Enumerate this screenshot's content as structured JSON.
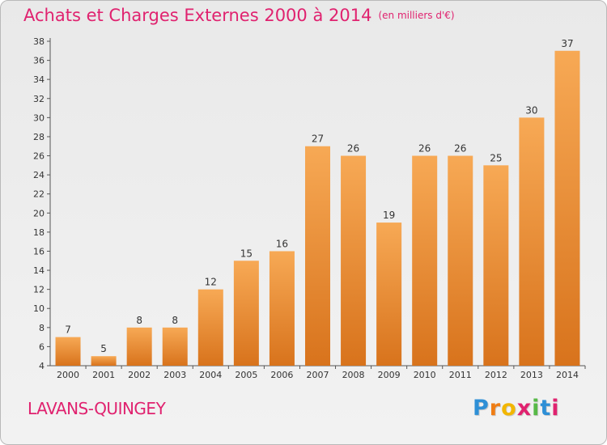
{
  "title": "Achats et Charges Externes 2000 à 2014",
  "subtitle": "(en milliers d'€)",
  "commune": "LAVANS-QUINGEY",
  "logo": {
    "letters": [
      "P",
      "r",
      "o",
      "x",
      "i",
      "t",
      "i"
    ],
    "colors": [
      "#2e8fd6",
      "#ef7d14",
      "#f2b600",
      "#e0226f",
      "#57b947",
      "#2e8fd6",
      "#e0226f"
    ]
  },
  "colors": {
    "bar_top": "#f7a955",
    "bar_bottom": "#d8731c",
    "title": "#e0226f"
  },
  "chart_data": {
    "type": "bar",
    "title": "Achats et Charges Externes 2000 à 2014",
    "subtitle": "(en milliers d'€)",
    "categories": [
      "2000",
      "2001",
      "2002",
      "2003",
      "2004",
      "2005",
      "2006",
      "2007",
      "2008",
      "2009",
      "2010",
      "2011",
      "2012",
      "2013",
      "2014"
    ],
    "values": [
      7,
      5,
      8,
      8,
      12,
      15,
      16,
      27,
      26,
      19,
      26,
      26,
      25,
      30,
      37
    ],
    "ylim": [
      4,
      38
    ],
    "yticks": [
      4,
      6,
      8,
      10,
      12,
      14,
      16,
      18,
      20,
      22,
      24,
      26,
      28,
      30,
      32,
      34,
      36,
      38
    ],
    "grid": false,
    "legend": "none"
  }
}
